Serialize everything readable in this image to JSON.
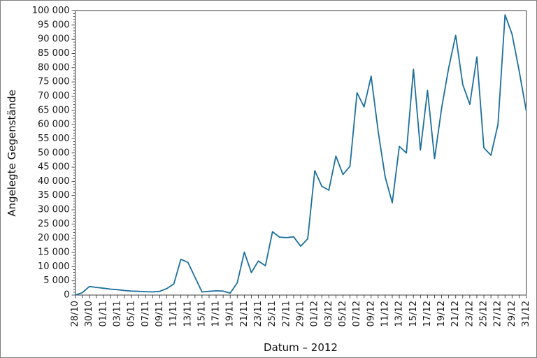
{
  "page": {
    "background": "#ffffff",
    "frame_color": "#3c3c3c",
    "text_color": "#1a1a1a"
  },
  "chart_data": {
    "type": "line",
    "title": "",
    "xlabel": "Datum – 2012",
    "ylabel": "Angelegte Gegenstände",
    "ylim": [
      0,
      100000
    ],
    "y_tick_step": 5000,
    "y_minor_step": 1000,
    "x_label_every": 2,
    "grid": false,
    "legend_position": "none",
    "line_color": "#1d6f9c",
    "x": [
      "28/10",
      "29/10",
      "30/10",
      "31/10",
      "01/11",
      "02/11",
      "03/11",
      "04/11",
      "05/11",
      "06/11",
      "07/11",
      "08/11",
      "09/11",
      "10/11",
      "11/11",
      "12/11",
      "13/11",
      "14/11",
      "15/11",
      "16/11",
      "17/11",
      "18/11",
      "19/11",
      "20/11",
      "21/11",
      "22/11",
      "23/11",
      "24/11",
      "25/11",
      "26/11",
      "27/11",
      "28/11",
      "29/11",
      "30/11",
      "01/12",
      "02/12",
      "03/12",
      "04/12",
      "05/12",
      "06/12",
      "07/12",
      "08/12",
      "09/12",
      "10/12",
      "11/12",
      "12/12",
      "13/12",
      "14/12",
      "15/12",
      "16/12",
      "17/12",
      "18/12",
      "19/12",
      "20/12",
      "21/12",
      "22/12",
      "23/12",
      "24/12",
      "25/12",
      "26/12",
      "27/12",
      "28/12",
      "29/12",
      "30/12",
      "31/12"
    ],
    "values": [
      0,
      800,
      3000,
      2700,
      2400,
      2100,
      1900,
      1600,
      1400,
      1300,
      1200,
      1100,
      1300,
      2300,
      3900,
      12600,
      11500,
      6300,
      1100,
      1300,
      1500,
      1400,
      700,
      4300,
      15100,
      7900,
      12000,
      10300,
      22300,
      20400,
      20200,
      20500,
      17200,
      19800,
      43800,
      38300,
      36900,
      48900,
      42400,
      45300,
      71200,
      66200,
      77000,
      57500,
      41500,
      32500,
      52300,
      50000,
      79400,
      51000,
      72000,
      48000,
      65800,
      79800,
      91400,
      74100,
      67100,
      83800,
      51800,
      49200,
      60000,
      98600,
      91800,
      79000,
      65000
    ]
  }
}
